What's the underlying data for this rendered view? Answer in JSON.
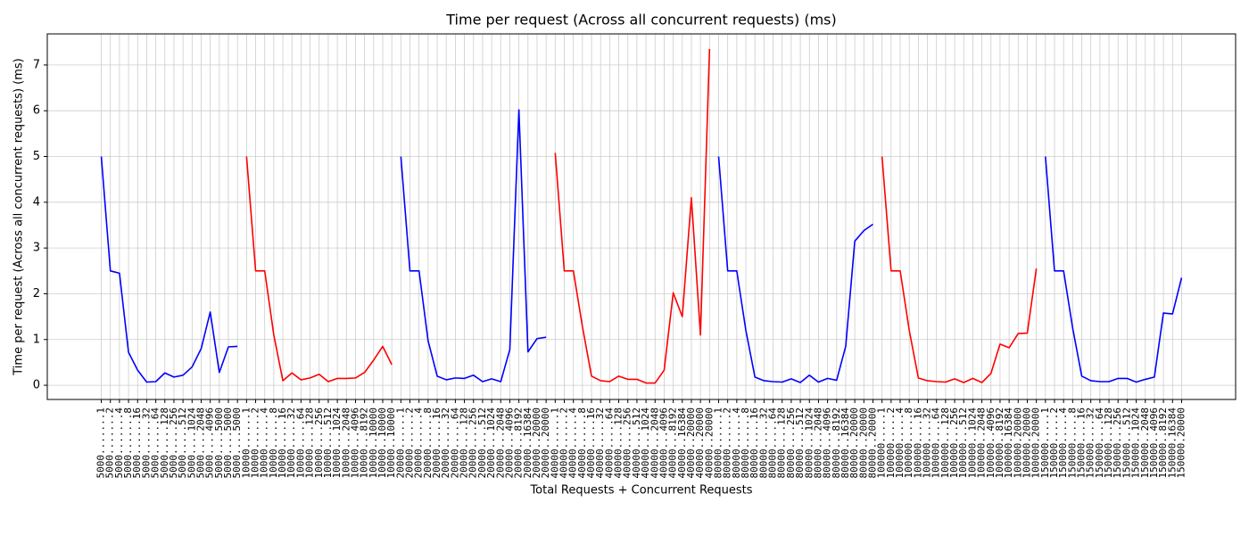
{
  "chart_data": {
    "type": "line",
    "title": "Time per request (Across all concurrent requests) (ms)",
    "x_label": "Total Requests + Concurrent Requests",
    "y_label": "Time per request (Across all concurrent requests) (ms)",
    "xlim": [
      -5.95,
      124.95
    ],
    "ylim": [
      -0.31,
      7.68
    ],
    "yticks": [
      0,
      1,
      2,
      3,
      4,
      5,
      6,
      7
    ],
    "grid": true,
    "series": [
      {
        "color": "#0000ff",
        "categories": [
          "5000.......1",
          "5000.......2",
          "5000.......4",
          "5000.......8",
          "5000......16",
          "5000......32",
          "5000......64",
          "5000.....128",
          "5000.....256",
          "5000.....512",
          "5000....1024",
          "5000....2048",
          "5000....4096",
          "5000....5000",
          "5000....5000",
          "5000....5000"
        ],
        "values": [
          5.0,
          2.5,
          2.45,
          0.72,
          0.33,
          0.07,
          0.08,
          0.27,
          0.18,
          0.22,
          0.4,
          0.8,
          1.6,
          0.28,
          0.84,
          0.85
        ]
      },
      {
        "color": "#ff0000",
        "categories": [
          "10000......1",
          "10000......2",
          "10000......4",
          "10000......8",
          "10000.....16",
          "10000.....32",
          "10000.....64",
          "10000....128",
          "10000....256",
          "10000....512",
          "10000...1024",
          "10000...2048",
          "10000...4096",
          "10000...8192",
          "10000..10000",
          "10000..10000",
          "10000..10000"
        ],
        "values": [
          5.0,
          2.5,
          2.5,
          1.1,
          0.1,
          0.27,
          0.12,
          0.16,
          0.24,
          0.08,
          0.15,
          0.15,
          0.16,
          0.28,
          0.55,
          0.85,
          0.45
        ]
      },
      {
        "color": "#0000ff",
        "categories": [
          "20000......1",
          "20000......2",
          "20000......4",
          "20000......8",
          "20000.....16",
          "20000.....32",
          "20000.....64",
          "20000....128",
          "20000....256",
          "20000....512",
          "20000...1024",
          "20000...2048",
          "20000...4096",
          "20000...8192",
          "20000..16384",
          "20000..20000",
          "20000..20000"
        ],
        "values": [
          5.0,
          2.5,
          2.5,
          0.97,
          0.2,
          0.12,
          0.16,
          0.15,
          0.22,
          0.08,
          0.14,
          0.08,
          0.78,
          6.02,
          0.73,
          1.02,
          1.05
        ]
      },
      {
        "color": "#ff0000",
        "categories": [
          "40000......1",
          "40000......2",
          "40000......4",
          "40000......8",
          "40000.....16",
          "40000.....32",
          "40000.....64",
          "40000....128",
          "40000....256",
          "40000....512",
          "40000...1024",
          "40000...2048",
          "40000...4096",
          "40000...8192",
          "40000..16384",
          "40000..20000",
          "40000..20000",
          "40000..20000"
        ],
        "values": [
          5.08,
          2.5,
          2.5,
          1.28,
          0.2,
          0.1,
          0.08,
          0.2,
          0.13,
          0.13,
          0.05,
          0.05,
          0.33,
          2.02,
          1.5,
          4.1,
          1.1,
          7.35
        ]
      },
      {
        "color": "#0000ff",
        "categories": [
          "80000......1",
          "80000......2",
          "80000......4",
          "80000......8",
          "80000.....16",
          "80000.....32",
          "80000.....64",
          "80000....128",
          "80000....256",
          "80000....512",
          "80000...1024",
          "80000...2048",
          "80000...4096",
          "80000...8192",
          "80000..16384",
          "80000..20000",
          "80000..20000",
          "80000..20000"
        ],
        "values": [
          5.0,
          2.5,
          2.5,
          1.2,
          0.18,
          0.1,
          0.08,
          0.07,
          0.14,
          0.06,
          0.22,
          0.07,
          0.15,
          0.11,
          0.85,
          3.15,
          3.38,
          3.52
        ]
      },
      {
        "color": "#ff0000",
        "categories": [
          "100000.....1",
          "100000.....2",
          "100000.....4",
          "100000.....8",
          "100000....16",
          "100000....32",
          "100000....64",
          "100000...128",
          "100000...256",
          "100000...512",
          "100000..1024",
          "100000..2048",
          "100000..4096",
          "100000..8192",
          "100000.16384",
          "100000.20000",
          "100000.20000",
          "100000.20000"
        ],
        "values": [
          5.0,
          2.5,
          2.5,
          1.2,
          0.16,
          0.1,
          0.08,
          0.07,
          0.14,
          0.06,
          0.15,
          0.06,
          0.26,
          0.9,
          0.82,
          1.13,
          1.14,
          2.55
        ]
      },
      {
        "color": "#0000ff",
        "categories": [
          "150000.....1",
          "150000.....2",
          "150000.....4",
          "150000.....8",
          "150000....16",
          "150000....32",
          "150000....64",
          "150000...128",
          "150000...256",
          "150000...512",
          "150000..1024",
          "150000..2048",
          "150000..4096",
          "150000..8192",
          "150000.16384",
          "150000.20000"
        ],
        "values": [
          5.0,
          2.5,
          2.5,
          1.25,
          0.2,
          0.1,
          0.08,
          0.08,
          0.15,
          0.15,
          0.07,
          0.13,
          0.18,
          1.58,
          1.56,
          2.35
        ]
      }
    ]
  }
}
